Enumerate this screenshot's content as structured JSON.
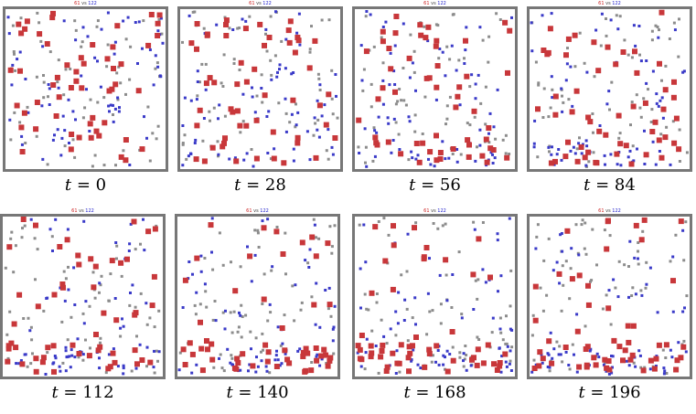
{
  "colors": {
    "red": "#c8373a",
    "blue": "#3a3ac8",
    "gray": "#8c8c8c",
    "frame": "#777777"
  },
  "panels": [
    {
      "caption_var": "t",
      "caption_eq": " = ",
      "caption_val": "0",
      "header": {
        "red": "61",
        "vs": " vs ",
        "blue": "122"
      }
    },
    {
      "caption_var": "t",
      "caption_eq": " = ",
      "caption_val": "28",
      "header": {
        "red": "61",
        "vs": " vs ",
        "blue": "122"
      }
    },
    {
      "caption_var": "t",
      "caption_eq": " = ",
      "caption_val": "56",
      "header": {
        "red": "61",
        "vs": " vs ",
        "blue": "122"
      }
    },
    {
      "caption_var": "t",
      "caption_eq": " = ",
      "caption_val": "84",
      "header": {
        "red": "61",
        "vs": " vs ",
        "blue": "122"
      }
    },
    {
      "caption_var": "t",
      "caption_eq": " = ",
      "caption_val": "112",
      "header": {
        "red": "61",
        "vs": " vs ",
        "blue": "122"
      }
    },
    {
      "caption_var": "t",
      "caption_eq": " = ",
      "caption_val": "140",
      "header": {
        "red": "61",
        "vs": " vs ",
        "blue": "122"
      }
    },
    {
      "caption_var": "t",
      "caption_eq": " = ",
      "caption_val": "168",
      "header": {
        "red": "61",
        "vs": " vs ",
        "blue": "122"
      }
    },
    {
      "caption_var": "t",
      "caption_eq": " = ",
      "caption_val": "196",
      "header": {
        "red": "61",
        "vs": " vs ",
        "blue": "122"
      }
    }
  ]
}
